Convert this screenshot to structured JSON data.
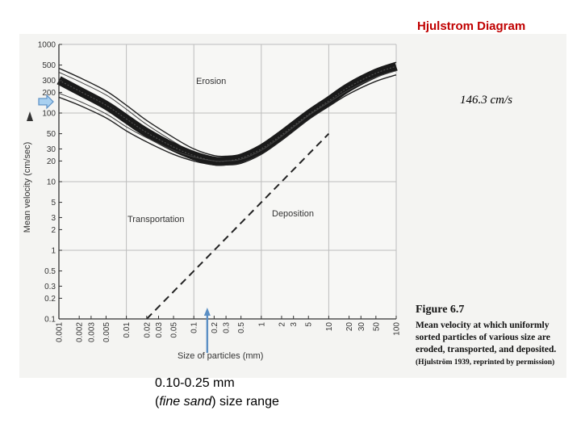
{
  "slide": {
    "title": "Hjulstrom Diagram",
    "velocity_note": "146.3 cm/s",
    "caption_line1": "0.10-0.25 mm",
    "caption_line2_open": "(",
    "caption_line2_italic": "fine sand",
    "caption_line2_close": ") size range"
  },
  "figure_caption": {
    "number": "Figure 6.7",
    "lines": [
      "Mean velocity at which uniformly",
      "sorted particles of various size are",
      "eroded, transported, and deposited.",
      "(Hjulström 1939, reprinted by permission)"
    ]
  },
  "chart_data": {
    "type": "line",
    "title": "",
    "xlabel": "Size of particles (mm)",
    "ylabel": "Mean velocity (cm/sec)",
    "x_scale": "log",
    "y_scale": "log",
    "xlim": [
      0.001,
      100
    ],
    "ylim": [
      0.1,
      1000
    ],
    "grid": true,
    "x_ticks": [
      "0.001",
      "0.002",
      "0.003",
      "0.005",
      "0.01",
      "0.02",
      "0.03",
      "0.05",
      "0.1",
      "0.2",
      "0.3",
      "0.5",
      "1",
      "2",
      "3",
      "5",
      "10",
      "20",
      "30",
      "50",
      "100"
    ],
    "y_ticks": [
      "0.1",
      "0.2",
      "0.3",
      "0.5",
      "1",
      "2",
      "3",
      "5",
      "10",
      "20",
      "30",
      "50",
      "100",
      "200",
      "300",
      "500",
      "1000"
    ],
    "regions": [
      "Erosion",
      "Transportation",
      "Deposition"
    ],
    "series": [
      {
        "style": "band-upper",
        "x": [
          0.001,
          0.002,
          0.005,
          0.01,
          0.02,
          0.05,
          0.1,
          0.2,
          0.3,
          0.5,
          1,
          2,
          5,
          10,
          20,
          50,
          100
        ],
        "y": [
          450,
          330,
          210,
          130,
          78,
          44,
          30,
          24,
          23.5,
          25,
          34,
          55,
          105,
          160,
          250,
          420,
          550
        ]
      },
      {
        "style": "band-core",
        "x": [
          0.001,
          0.002,
          0.005,
          0.01,
          0.02,
          0.05,
          0.1,
          0.2,
          0.3,
          0.5,
          1,
          2,
          5,
          10,
          20,
          50,
          100
        ],
        "y": [
          300,
          210,
          130,
          82,
          52,
          32,
          24,
          20,
          20,
          22,
          30,
          48,
          95,
          150,
          240,
          380,
          480
        ]
      },
      {
        "style": "band-lower",
        "x": [
          0.001,
          0.002,
          0.005,
          0.01,
          0.02,
          0.05,
          0.1,
          0.2,
          0.3,
          0.5,
          1,
          2,
          5,
          10,
          20,
          50,
          100
        ],
        "y": [
          170,
          130,
          85,
          55,
          38,
          25,
          20,
          17.5,
          17.5,
          18.5,
          25,
          40,
          80,
          125,
          190,
          290,
          360
        ]
      },
      {
        "style": "dashed",
        "x": [
          0.02,
          0.05,
          0.1,
          0.2,
          0.5,
          1,
          2,
          5,
          10
        ],
        "y": [
          0.1,
          0.25,
          0.5,
          1,
          2.5,
          5,
          10,
          25,
          50
        ]
      }
    ],
    "annotations": {
      "arrow_left_value": 146.3,
      "arrow_up_range": [
        0.1,
        0.25
      ]
    }
  },
  "colors": {
    "arrow_fill": "#a8d0f0",
    "arrow_stroke": "#5b8fc4",
    "title": "#c00000"
  }
}
